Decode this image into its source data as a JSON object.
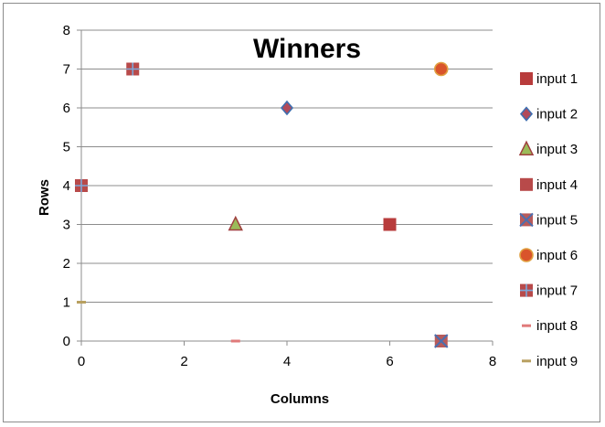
{
  "chart_data": {
    "type": "scatter",
    "title": "Winners",
    "xlabel": "Columns",
    "ylabel": "Rows",
    "xlim": [
      0,
      8
    ],
    "ylim": [
      0,
      8
    ],
    "xticks": [
      0,
      2,
      4,
      6,
      8
    ],
    "yticks": [
      0,
      1,
      2,
      3,
      4,
      5,
      6,
      7,
      8
    ],
    "grid": "horizontal",
    "legend_position": "right",
    "series": [
      {
        "name": "input 1",
        "marker": "square",
        "color": "#b83c3c",
        "points": [
          {
            "x": 6,
            "y": 3
          }
        ]
      },
      {
        "name": "input 2",
        "marker": "diamond",
        "color": "#b24a5a",
        "edge": "#3f6fb0",
        "points": [
          {
            "x": 4,
            "y": 6
          }
        ]
      },
      {
        "name": "input 3",
        "marker": "triangle",
        "color": "#9bbb59",
        "edge": "#a04040",
        "points": [
          {
            "x": 3,
            "y": 3
          }
        ]
      },
      {
        "name": "input 4",
        "marker": "square",
        "color": "#b84a4a",
        "points": [
          {
            "x": 0,
            "y": 4
          }
        ]
      },
      {
        "name": "input 5",
        "marker": "square-x",
        "color": "#b85a5a",
        "edge": "#4a6fb0",
        "points": [
          {
            "x": 7,
            "y": 0
          }
        ]
      },
      {
        "name": "input 6",
        "marker": "circle",
        "color": "#d9542b",
        "edge": "#e0a040",
        "points": [
          {
            "x": 7,
            "y": 7
          }
        ]
      },
      {
        "name": "input 7",
        "marker": "square-plus",
        "color": "#b84a4a",
        "edge": "#7da7d9",
        "points": [
          {
            "x": 1,
            "y": 7
          },
          {
            "x": 0,
            "y": 4
          }
        ]
      },
      {
        "name": "input 8",
        "marker": "dash",
        "color": "#e07a7a",
        "points": [
          {
            "x": 3,
            "y": 0
          }
        ]
      },
      {
        "name": "input 9",
        "marker": "dash",
        "color": "#b8a060",
        "points": [
          {
            "x": 0,
            "y": 1
          }
        ]
      }
    ]
  }
}
